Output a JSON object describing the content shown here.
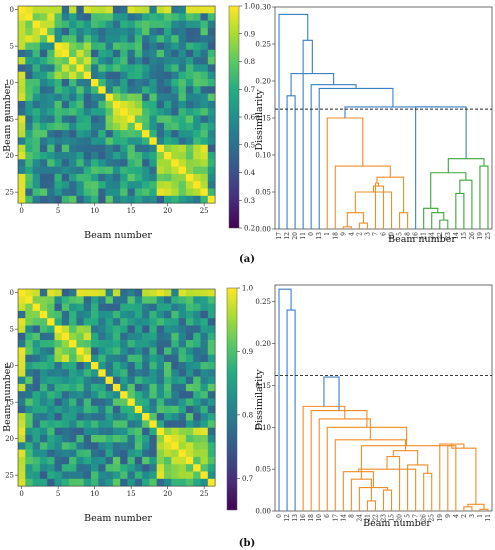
{
  "chart_data": [
    {
      "type": "heatmap",
      "panel": "(a)",
      "xlabel": "Beam number",
      "ylabel": "Beam number",
      "x_ticks": [
        0,
        5,
        10,
        15,
        20,
        25
      ],
      "y_ticks": [
        0,
        5,
        10,
        15,
        20,
        25
      ],
      "size": 27,
      "colorbar": {
        "min": 0.2,
        "max": 1.0,
        "ticks": [
          0.2,
          0.3,
          0.4,
          0.5,
          0.6,
          0.7,
          0.8,
          0.9,
          1.0
        ],
        "colormap": "viridis"
      },
      "blocks": [
        [
          1,
          4
        ],
        [
          5,
          9
        ],
        [
          12,
          16
        ],
        [
          19,
          25
        ]
      ]
    },
    {
      "type": "dendrogram",
      "panel": "(a)",
      "xlabel": "Beam number",
      "ylabel": "Dissimilarity",
      "ylim": [
        0,
        0.3
      ],
      "y_ticks": [
        "0.00",
        "0.05",
        "0.10",
        "0.15",
        "0.20",
        "0.25",
        "0.30"
      ],
      "threshold": 0.162,
      "leaf_order": [
        "17",
        "12",
        "20",
        "11",
        "0",
        "13",
        "1",
        "18",
        "9",
        "4",
        "2",
        "3",
        "7",
        "6",
        "10",
        "5",
        "8",
        "16",
        "21",
        "24",
        "22",
        "23",
        "14",
        "15",
        "26",
        "19",
        "25"
      ],
      "cluster_colors": [
        "#3b7fc4",
        "#f28c28",
        "#3aa53a"
      ]
    },
    {
      "type": "heatmap",
      "panel": "(b)",
      "xlabel": "Beam number",
      "ylabel": "Beam number",
      "x_ticks": [
        0,
        5,
        10,
        15,
        20,
        25
      ],
      "y_ticks": [
        0,
        5,
        10,
        15,
        20,
        25
      ],
      "size": 27,
      "colorbar": {
        "min": 0.65,
        "max": 1.0,
        "ticks": [
          0.7,
          0.8,
          0.9,
          1.0
        ],
        "colormap": "viridis"
      },
      "blocks": [
        [
          1,
          4
        ],
        [
          5,
          9
        ],
        [
          19,
          25
        ]
      ]
    },
    {
      "type": "dendrogram",
      "panel": "(b)",
      "xlabel": "Beam number",
      "ylabel": "Dissimilarity",
      "ylim": [
        0,
        0.27
      ],
      "y_ticks": [
        "0.00",
        "0.05",
        "0.10",
        "0.15",
        "0.20",
        "0.25"
      ],
      "threshold": 0.162,
      "leaf_order": [
        "0",
        "12",
        "13",
        "16",
        "18",
        "10",
        "6",
        "17",
        "14",
        "8",
        "24",
        "21",
        "22",
        "23",
        "15",
        "20",
        "5",
        "7",
        "26",
        "25",
        "19",
        "9",
        "4",
        "2",
        "3",
        "1",
        "11"
      ],
      "cluster_colors": [
        "#3b7fc4",
        "#f28c28"
      ]
    }
  ]
}
